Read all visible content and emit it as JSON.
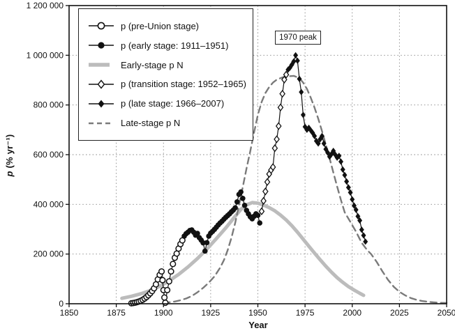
{
  "chart_data": {
    "type": "line",
    "title": "",
    "xlabel": "Year",
    "ylabel": "p (% yr⁻¹)",
    "xlim": [
      1850,
      2050
    ],
    "ylim": [
      0,
      1200000
    ],
    "x_ticks": [
      "1850",
      "1875",
      "1900",
      "1925",
      "1950",
      "1975",
      "2000",
      "2025",
      "2050"
    ],
    "y_ticks": [
      {
        "value": 0,
        "label": "0"
      },
      {
        "value": 200000,
        "label": "200 000"
      },
      {
        "value": 400000,
        "label": "400 000"
      },
      {
        "value": 600000,
        "label": "600 000"
      },
      {
        "value": 800000,
        "label": "800 000"
      },
      {
        "value": 1000000,
        "label": "1 000 000"
      },
      {
        "value": 1200000,
        "label": "1 200 000"
      }
    ],
    "grid": "dotted gridlines at every x and y tick, full frame box",
    "legend_position": "top-left inside plot",
    "annotation": {
      "text": "1970 peak",
      "year": 1970,
      "value": 1000000
    },
    "colors": {
      "data": "#111111",
      "early_stage_pN": "#bcbcbc",
      "late_stage_pN": "#7a7a7a",
      "grid": "#8a8a8a"
    },
    "series": [
      {
        "name": "p (pre-Union stage)",
        "marker": "open-circle",
        "line": "solid",
        "color": "#111111",
        "width": 1.2,
        "points": [
          [
            1883,
            2000
          ],
          [
            1884,
            3000
          ],
          [
            1885,
            4500
          ],
          [
            1886,
            6500
          ],
          [
            1887,
            9000
          ],
          [
            1888,
            12000
          ],
          [
            1889,
            16000
          ],
          [
            1890,
            21000
          ],
          [
            1891,
            27000
          ],
          [
            1892,
            34000
          ],
          [
            1893,
            42000
          ],
          [
            1894,
            51000
          ],
          [
            1895,
            62000
          ],
          [
            1896,
            78000
          ],
          [
            1897,
            98000
          ],
          [
            1898,
            116000
          ],
          [
            1899,
            130000
          ],
          [
            1899.5,
            95000
          ],
          [
            1900,
            55000
          ],
          [
            1900.5,
            25000
          ],
          [
            1901,
            4000
          ],
          [
            1902,
            55000
          ],
          [
            1903,
            90000
          ],
          [
            1904,
            130000
          ],
          [
            1905,
            160000
          ],
          [
            1906,
            185000
          ],
          [
            1907,
            202000
          ],
          [
            1908,
            222000
          ],
          [
            1909,
            240000
          ],
          [
            1910,
            255000
          ]
        ]
      },
      {
        "name": "p (early stage: 1911–1951)",
        "marker": "filled-circle",
        "line": "solid",
        "color": "#111111",
        "width": 1.2,
        "points": [
          [
            1911,
            272000
          ],
          [
            1912,
            282000
          ],
          [
            1913,
            288000
          ],
          [
            1914,
            295000
          ],
          [
            1915,
            297000
          ],
          [
            1916,
            288000
          ],
          [
            1917,
            276000
          ],
          [
            1918,
            283000
          ],
          [
            1919,
            266000
          ],
          [
            1920,
            256000
          ],
          [
            1921,
            245000
          ],
          [
            1922,
            212000
          ],
          [
            1923,
            246000
          ],
          [
            1924,
            272000
          ],
          [
            1925,
            284000
          ],
          [
            1926,
            291000
          ],
          [
            1927,
            299000
          ],
          [
            1928,
            308000
          ],
          [
            1929,
            317000
          ],
          [
            1930,
            325000
          ],
          [
            1931,
            332000
          ],
          [
            1932,
            340000
          ],
          [
            1933,
            348000
          ],
          [
            1934,
            355000
          ],
          [
            1935,
            362000
          ],
          [
            1936,
            370000
          ],
          [
            1937,
            377000
          ],
          [
            1938,
            386000
          ],
          [
            1939,
            410000
          ],
          [
            1940,
            440000
          ],
          [
            1941,
            450000
          ],
          [
            1942,
            424000
          ],
          [
            1943,
            396000
          ],
          [
            1944,
            376000
          ],
          [
            1945,
            362000
          ],
          [
            1946,
            350000
          ],
          [
            1947,
            342000
          ],
          [
            1948,
            352000
          ],
          [
            1949,
            362000
          ],
          [
            1950,
            356000
          ],
          [
            1951,
            325000
          ]
        ]
      },
      {
        "name": "Early-stage p N",
        "marker": "none",
        "line": "solid-thick",
        "color": "#bcbcbc",
        "width": 5,
        "points": [
          [
            1878,
            22000
          ],
          [
            1883,
            30000
          ],
          [
            1888,
            40000
          ],
          [
            1893,
            53000
          ],
          [
            1898,
            70000
          ],
          [
            1903,
            92000
          ],
          [
            1908,
            118000
          ],
          [
            1913,
            148000
          ],
          [
            1918,
            182000
          ],
          [
            1923,
            220000
          ],
          [
            1928,
            262000
          ],
          [
            1933,
            305000
          ],
          [
            1938,
            352000
          ],
          [
            1941,
            380000
          ],
          [
            1944,
            398000
          ],
          [
            1947,
            407000
          ],
          [
            1950,
            405000
          ],
          [
            1953,
            397000
          ],
          [
            1956,
            387000
          ],
          [
            1959,
            374000
          ],
          [
            1962,
            357000
          ],
          [
            1965,
            337000
          ],
          [
            1968,
            314000
          ],
          [
            1971,
            288000
          ],
          [
            1974,
            260000
          ],
          [
            1977,
            232000
          ],
          [
            1980,
            204000
          ],
          [
            1983,
            177000
          ],
          [
            1986,
            151000
          ],
          [
            1989,
            127000
          ],
          [
            1992,
            105000
          ],
          [
            1995,
            86000
          ],
          [
            1998,
            69000
          ],
          [
            2001,
            55000
          ],
          [
            2004,
            42000
          ],
          [
            2006,
            34000
          ]
        ]
      },
      {
        "name": "p (transition stage: 1952–1965)",
        "marker": "open-diamond",
        "line": "solid",
        "color": "#111111",
        "width": 1.2,
        "points": [
          [
            1952,
            372000
          ],
          [
            1953,
            414000
          ],
          [
            1954,
            452000
          ],
          [
            1955,
            490000
          ],
          [
            1956,
            522000
          ],
          [
            1957,
            538000
          ],
          [
            1958,
            550000
          ],
          [
            1959,
            626000
          ],
          [
            1960,
            662000
          ],
          [
            1961,
            715000
          ],
          [
            1962,
            790000
          ],
          [
            1963,
            845000
          ],
          [
            1964,
            902000
          ],
          [
            1965,
            922000
          ]
        ]
      },
      {
        "name": "p (late stage: 1966–2007)",
        "marker": "filled-diamond",
        "line": "solid",
        "color": "#111111",
        "width": 1.2,
        "points": [
          [
            1966,
            942000
          ],
          [
            1967,
            950000
          ],
          [
            1968,
            962000
          ],
          [
            1969,
            975000
          ],
          [
            1970,
            1000000
          ],
          [
            1971,
            978000
          ],
          [
            1972,
            905000
          ],
          [
            1973,
            852000
          ],
          [
            1974,
            760000
          ],
          [
            1975,
            712000
          ],
          [
            1976,
            700000
          ],
          [
            1977,
            708000
          ],
          [
            1978,
            698000
          ],
          [
            1979,
            688000
          ],
          [
            1980,
            675000
          ],
          [
            1981,
            655000
          ],
          [
            1982,
            645000
          ],
          [
            1983,
            662000
          ],
          [
            1984,
            675000
          ],
          [
            1985,
            645000
          ],
          [
            1986,
            622000
          ],
          [
            1987,
            608000
          ],
          [
            1988,
            592000
          ],
          [
            1989,
            602000
          ],
          [
            1990,
            615000
          ],
          [
            1991,
            600000
          ],
          [
            1992,
            588000
          ],
          [
            1993,
            595000
          ],
          [
            1994,
            572000
          ],
          [
            1995,
            540000
          ],
          [
            1996,
            518000
          ],
          [
            1997,
            492000
          ],
          [
            1998,
            468000
          ],
          [
            1999,
            448000
          ],
          [
            2000,
            420000
          ],
          [
            2001,
            395000
          ],
          [
            2002,
            378000
          ],
          [
            2003,
            352000
          ],
          [
            2004,
            335000
          ],
          [
            2005,
            298000
          ],
          [
            2006,
            275000
          ],
          [
            2007,
            250000
          ]
        ]
      },
      {
        "name": "Late-stage p N",
        "marker": "none",
        "line": "dashed",
        "color": "#7a7a7a",
        "width": 2.4,
        "points": [
          [
            1900,
            4000
          ],
          [
            1903,
            6000
          ],
          [
            1906,
            9000
          ],
          [
            1909,
            14000
          ],
          [
            1912,
            21000
          ],
          [
            1915,
            31000
          ],
          [
            1918,
            46000
          ],
          [
            1921,
            64000
          ],
          [
            1924,
            85000
          ],
          [
            1927,
            110000
          ],
          [
            1930,
            145000
          ],
          [
            1932,
            175000
          ],
          [
            1934,
            215000
          ],
          [
            1936,
            265000
          ],
          [
            1938,
            325000
          ],
          [
            1940,
            395000
          ],
          [
            1942,
            470000
          ],
          [
            1944,
            545000
          ],
          [
            1946,
            615000
          ],
          [
            1948,
            690000
          ],
          [
            1950,
            760000
          ],
          [
            1952,
            812000
          ],
          [
            1954,
            848000
          ],
          [
            1956,
            872000
          ],
          [
            1958,
            890000
          ],
          [
            1960,
            902000
          ],
          [
            1963,
            911000
          ],
          [
            1966,
            915000
          ],
          [
            1969,
            917000
          ],
          [
            1972,
            908000
          ],
          [
            1974,
            890000
          ],
          [
            1976,
            865000
          ],
          [
            1978,
            830000
          ],
          [
            1980,
            790000
          ],
          [
            1982,
            744000
          ],
          [
            1984,
            694000
          ],
          [
            1986,
            640000
          ],
          [
            1988,
            585000
          ],
          [
            1990,
            528000
          ],
          [
            1992,
            472000
          ],
          [
            1994,
            418000
          ],
          [
            1996,
            368000
          ],
          [
            1999,
            330000
          ],
          [
            2002,
            290000
          ],
          [
            2005,
            245000
          ],
          [
            2008,
            215000
          ],
          [
            2010,
            200000
          ],
          [
            2013,
            168000
          ],
          [
            2016,
            130000
          ],
          [
            2019,
            96000
          ],
          [
            2022,
            68000
          ],
          [
            2025,
            48000
          ],
          [
            2028,
            34000
          ],
          [
            2031,
            23000
          ],
          [
            2034,
            16000
          ],
          [
            2037,
            11000
          ],
          [
            2040,
            8000
          ],
          [
            2043,
            5500
          ],
          [
            2046,
            4000
          ],
          [
            2050,
            3000
          ]
        ]
      }
    ]
  }
}
